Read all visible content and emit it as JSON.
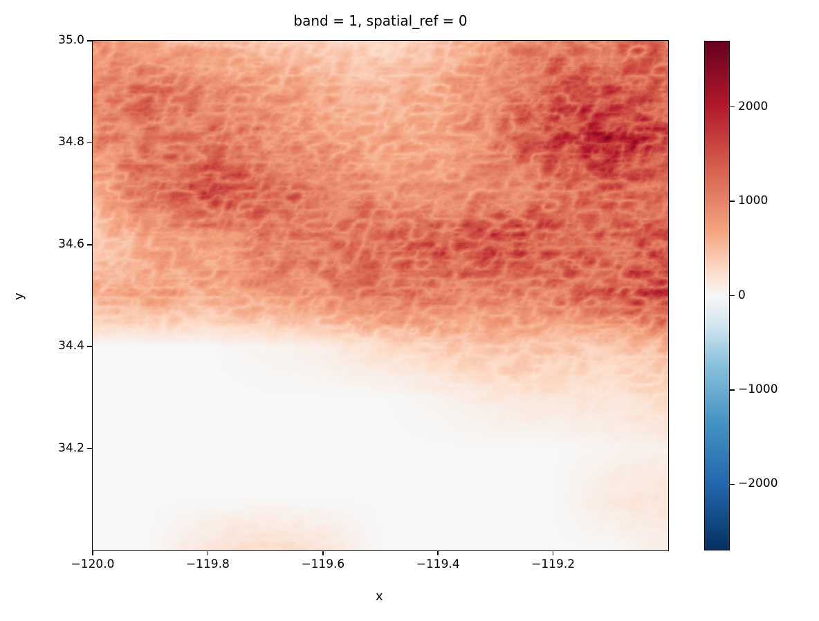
{
  "chart_data": {
    "type": "heatmap",
    "title": "band = 1, spatial_ref = 0",
    "xlabel": "x",
    "ylabel": "y",
    "xlim": [
      -120.0,
      -119.0
    ],
    "ylim": [
      34.0,
      35.0
    ],
    "xticks": [
      -120.0,
      -119.8,
      -119.6,
      -119.4,
      -119.2
    ],
    "xtick_labels": [
      "−120.0",
      "−119.8",
      "−119.6",
      "−119.4",
      "−119.2"
    ],
    "yticks": [
      34.2,
      34.4,
      34.6,
      34.8,
      35.0
    ],
    "ytick_labels": [
      "34.2",
      "34.4",
      "34.6",
      "34.8",
      "35.0"
    ],
    "colormap": "RdBu_r",
    "colorbar": {
      "vmin": -2700,
      "vmax": 2700,
      "ticks": [
        2000,
        1000,
        0,
        -1000,
        -2000
      ],
      "tick_labels": [
        "2000",
        "1000",
        "0",
        "−1000",
        "−2000"
      ]
    },
    "approx_grid": {
      "note_x": [
        -120.0,
        -119.9,
        -119.8,
        -119.7,
        -119.6,
        -119.5,
        -119.4,
        -119.3,
        -119.2,
        -119.1,
        -119.0
      ],
      "note_y": [
        35.0,
        34.9,
        34.8,
        34.7,
        34.6,
        34.5,
        34.4,
        34.3,
        34.2,
        34.1,
        34.0
      ],
      "values": [
        [
          900,
          700,
          600,
          500,
          400,
          300,
          500,
          900,
          1200,
          1200,
          1300
        ],
        [
          1200,
          1300,
          1100,
          900,
          700,
          600,
          700,
          1100,
          1600,
          1700,
          1500
        ],
        [
          1000,
          1200,
          1300,
          1100,
          900,
          700,
          800,
          1100,
          1700,
          2200,
          1700
        ],
        [
          600,
          1400,
          1600,
          1500,
          1200,
          1000,
          900,
          1000,
          1300,
          1400,
          1400
        ],
        [
          400,
          700,
          900,
          1200,
          1300,
          1400,
          1500,
          1800,
          1600,
          1400,
          1600
        ],
        [
          700,
          800,
          700,
          900,
          1000,
          1300,
          1200,
          1100,
          1200,
          1500,
          1800
        ],
        [
          0,
          0,
          0,
          50,
          100,
          250,
          400,
          500,
          500,
          400,
          600
        ],
        [
          0,
          0,
          0,
          0,
          0,
          0,
          50,
          150,
          200,
          200,
          300
        ],
        [
          0,
          0,
          0,
          0,
          0,
          0,
          0,
          0,
          0,
          50,
          100
        ],
        [
          0,
          0,
          0,
          0,
          0,
          0,
          0,
          0,
          0,
          150,
          200
        ],
        [
          0,
          0,
          200,
          300,
          200,
          0,
          0,
          0,
          0,
          0,
          100
        ]
      ]
    }
  }
}
